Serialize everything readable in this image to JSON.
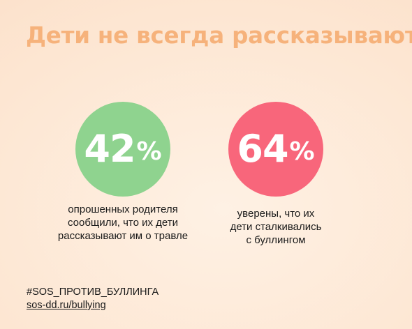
{
  "title": "Дети не всегда рассказывают",
  "stats": [
    {
      "number": "42",
      "unit": "%",
      "color": "#8fd38f",
      "caption": [
        "опрошенных родителя",
        "сообщили, что их дети",
        "рассказывают им о травле"
      ]
    },
    {
      "number": "64",
      "unit": "%",
      "color": "#f8667b",
      "caption": [
        "уверены, что их",
        "дети сталкивались",
        "с буллингом"
      ]
    }
  ],
  "footer": {
    "hashtag": "#SOS_ПРОТИВ_БУЛЛИНГА",
    "link": "sos-dd.ru/bullying"
  },
  "colors": {
    "title": "#f6b27b",
    "background": "#fde6d2"
  }
}
